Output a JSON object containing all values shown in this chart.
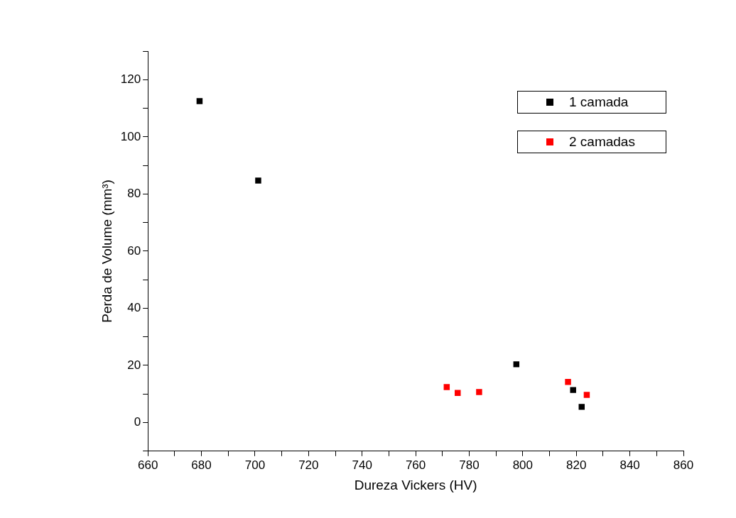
{
  "chart_data": {
    "type": "scatter",
    "xlabel": "Dureza Vickers (HV)",
    "ylabel": "Perda de Volume (mm³)",
    "xlim": [
      660,
      860
    ],
    "ylim": [
      -10,
      130
    ],
    "xticks": [
      660,
      {
        "value": 670,
        "label": null
      },
      680,
      {
        "value": 690,
        "label": null
      },
      700,
      {
        "value": 710,
        "label": null
      },
      720,
      {
        "value": 730,
        "label": null
      },
      740,
      {
        "value": 750,
        "label": null
      },
      760,
      {
        "value": 770,
        "label": null
      },
      780,
      {
        "value": 790,
        "label": null
      },
      800,
      {
        "value": 810,
        "label": null
      },
      820,
      {
        "value": 830,
        "label": null
      },
      840,
      {
        "value": 850,
        "label": null
      },
      860
    ],
    "yticks": [
      {
        "value": -10,
        "label": null
      },
      0,
      {
        "value": 10,
        "label": null
      },
      20,
      {
        "value": 30,
        "label": null
      },
      40,
      {
        "value": 50,
        "label": null
      },
      60,
      {
        "value": 70,
        "label": null
      },
      80,
      {
        "value": 90,
        "label": null
      },
      100,
      {
        "value": 110,
        "label": null
      },
      120,
      {
        "value": 130,
        "label": null
      }
    ],
    "grid": false,
    "legend": "top right",
    "marker": "square",
    "series": [
      {
        "name": "1 camada",
        "color": "#000000",
        "x": [
          679.3,
          701.2,
          797.6,
          818.8,
          822.0
        ],
        "values": [
          112.5,
          84.7,
          20.4,
          11.4,
          5.5
        ]
      },
      {
        "name": "2 camadas",
        "color": "#ff0000",
        "x": [
          771.6,
          775.7,
          783.7,
          816.9,
          823.9
        ],
        "values": [
          12.4,
          10.4,
          10.7,
          14.2,
          9.7
        ]
      }
    ]
  }
}
